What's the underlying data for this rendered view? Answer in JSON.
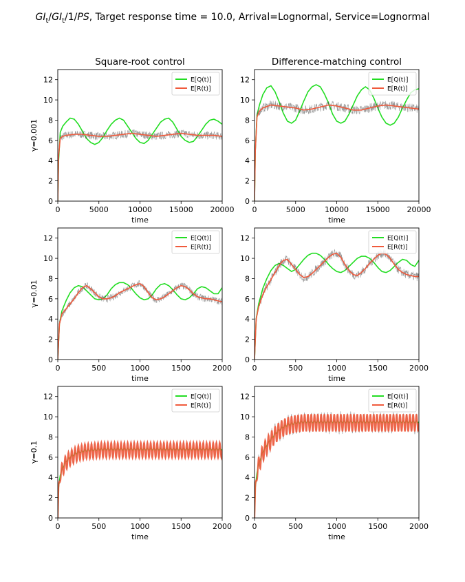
{
  "figure": {
    "title_parts": [
      "GI",
      "t",
      "/",
      "GI",
      "t",
      "/1/",
      "PS",
      ", Target response time = 10.0, Arrival=Lognormal, Service=Lognormal"
    ]
  },
  "colors": {
    "queue": "#22dd22",
    "response": "#f05a3c",
    "band": "#444444"
  },
  "chart_data": [
    {
      "type": "line",
      "title": "Square-root control",
      "xlabel": "time",
      "ylabel": "γ=0.001",
      "xlim": [
        0,
        20000
      ],
      "ylim": [
        0,
        13
      ],
      "xticks": [
        0,
        5000,
        10000,
        15000,
        20000
      ],
      "yticks": [
        0,
        2,
        4,
        6,
        8,
        10,
        12
      ],
      "legend": "top-right",
      "grid": false,
      "series": [
        {
          "name": "E[Q(t)]",
          "x": [
            0,
            100,
            300,
            600,
            1000,
            1500,
            2000,
            2500,
            3000,
            3500,
            4000,
            4500,
            5000,
            5500,
            6000,
            6500,
            7000,
            7500,
            8000,
            8500,
            9000,
            9500,
            10000,
            10500,
            11000,
            11500,
            12000,
            12500,
            13000,
            13500,
            14000,
            14500,
            15000,
            15500,
            16000,
            16500,
            17000,
            17500,
            18000,
            18500,
            19000,
            19500,
            20000
          ],
          "y": [
            0,
            4.0,
            6.8,
            7.4,
            7.8,
            8.2,
            8.1,
            7.6,
            6.9,
            6.2,
            5.8,
            5.6,
            5.8,
            6.3,
            7.0,
            7.6,
            8.0,
            8.2,
            8.0,
            7.4,
            6.8,
            6.2,
            5.8,
            5.7,
            6.0,
            6.6,
            7.2,
            7.8,
            8.1,
            8.2,
            7.8,
            7.1,
            6.4,
            6.0,
            5.8,
            5.9,
            6.4,
            7.0,
            7.6,
            8.0,
            8.1,
            7.9,
            7.6
          ]
        },
        {
          "name": "E[R(t)]",
          "x": [
            0,
            100,
            300,
            600,
            1000,
            2000,
            3000,
            4000,
            5000,
            6000,
            7000,
            8000,
            9000,
            10000,
            11000,
            12000,
            13000,
            14000,
            15000,
            16000,
            17000,
            18000,
            19000,
            20000
          ],
          "y": [
            0,
            4.5,
            6.2,
            6.4,
            6.5,
            6.6,
            6.6,
            6.5,
            6.4,
            6.4,
            6.5,
            6.6,
            6.7,
            6.6,
            6.5,
            6.4,
            6.5,
            6.6,
            6.7,
            6.6,
            6.5,
            6.5,
            6.5,
            6.4
          ],
          "noise": 0.4
        }
      ]
    },
    {
      "type": "line",
      "title": "Difference-matching control",
      "xlabel": "time",
      "ylabel": "",
      "xlim": [
        0,
        20000
      ],
      "ylim": [
        0,
        13
      ],
      "xticks": [
        0,
        5000,
        10000,
        15000,
        20000
      ],
      "yticks": [
        0,
        2,
        4,
        6,
        8,
        10,
        12
      ],
      "legend": "top-right",
      "grid": false,
      "series": [
        {
          "name": "E[Q(t)]",
          "x": [
            0,
            100,
            300,
            600,
            1000,
            1500,
            2000,
            2500,
            3000,
            3500,
            4000,
            4500,
            5000,
            5500,
            6000,
            6500,
            7000,
            7500,
            8000,
            8500,
            9000,
            9500,
            10000,
            10500,
            11000,
            11500,
            12000,
            12500,
            13000,
            13500,
            14000,
            14500,
            15000,
            15500,
            16000,
            16500,
            17000,
            17500,
            18000,
            18500,
            19000,
            19500,
            20000
          ],
          "y": [
            0,
            5.0,
            8.5,
            9.5,
            10.5,
            11.2,
            11.4,
            10.8,
            9.8,
            8.7,
            7.9,
            7.7,
            8.0,
            8.9,
            9.9,
            10.8,
            11.3,
            11.5,
            11.3,
            10.6,
            9.7,
            8.6,
            7.9,
            7.7,
            7.9,
            8.6,
            9.5,
            10.4,
            11.0,
            11.3,
            11.0,
            10.2,
            9.2,
            8.3,
            7.7,
            7.5,
            7.7,
            8.3,
            9.2,
            10.0,
            10.7,
            11.0,
            11.1
          ]
        },
        {
          "name": "E[R(t)]",
          "x": [
            0,
            100,
            300,
            600,
            1000,
            2000,
            3000,
            4000,
            5000,
            6000,
            7000,
            8000,
            9000,
            10000,
            11000,
            12000,
            13000,
            14000,
            15000,
            16000,
            17000,
            18000,
            19000,
            20000
          ],
          "y": [
            0,
            5.0,
            8.3,
            8.9,
            9.2,
            9.5,
            9.4,
            9.3,
            9.2,
            9.0,
            9.1,
            9.3,
            9.5,
            9.4,
            9.2,
            9.0,
            9.0,
            9.2,
            9.4,
            9.5,
            9.4,
            9.3,
            9.2,
            9.1
          ],
          "noise": 0.45
        }
      ]
    },
    {
      "type": "line",
      "title": "",
      "xlabel": "time",
      "ylabel": "γ=0.01",
      "xlim": [
        0,
        2000
      ],
      "ylim": [
        0,
        13
      ],
      "xticks": [
        0,
        500,
        1000,
        1500,
        2000
      ],
      "yticks": [
        0,
        2,
        4,
        6,
        8,
        10,
        12
      ],
      "legend": "top-right",
      "grid": false,
      "series": [
        {
          "name": "E[Q(t)]",
          "x": [
            0,
            20,
            50,
            100,
            150,
            200,
            250,
            300,
            350,
            400,
            450,
            500,
            550,
            600,
            650,
            700,
            750,
            800,
            850,
            900,
            950,
            1000,
            1050,
            1100,
            1150,
            1200,
            1250,
            1300,
            1350,
            1400,
            1450,
            1500,
            1550,
            1600,
            1650,
            1700,
            1750,
            1800,
            1850,
            1900,
            1950,
            2000
          ],
          "y": [
            0,
            3.5,
            4.8,
            5.8,
            6.6,
            7.1,
            7.3,
            7.2,
            6.8,
            6.4,
            6.0,
            5.9,
            6.0,
            6.4,
            7.0,
            7.4,
            7.6,
            7.6,
            7.4,
            7.0,
            6.5,
            6.1,
            5.9,
            6.0,
            6.4,
            7.0,
            7.4,
            7.5,
            7.3,
            6.9,
            6.4,
            6.0,
            5.9,
            6.1,
            6.5,
            7.0,
            7.2,
            7.1,
            6.8,
            6.5,
            6.5,
            7.1
          ]
        },
        {
          "name": "E[R(t)]",
          "x": [
            0,
            20,
            50,
            100,
            150,
            200,
            250,
            300,
            350,
            400,
            450,
            500,
            550,
            600,
            650,
            700,
            750,
            800,
            850,
            900,
            950,
            1000,
            1050,
            1100,
            1150,
            1200,
            1250,
            1300,
            1350,
            1400,
            1450,
            1500,
            1550,
            1600,
            1650,
            1700,
            1750,
            1800,
            1850,
            1900,
            1950,
            2000
          ],
          "y": [
            0,
            3.5,
            4.5,
            5.0,
            5.5,
            6.0,
            6.6,
            7.1,
            7.3,
            7.0,
            6.6,
            6.2,
            6.0,
            6.0,
            6.1,
            6.3,
            6.6,
            6.8,
            7.0,
            7.2,
            7.4,
            7.5,
            7.2,
            6.6,
            6.1,
            5.9,
            6.0,
            6.2,
            6.5,
            6.8,
            7.1,
            7.3,
            7.2,
            6.9,
            6.5,
            6.2,
            6.1,
            6.0,
            6.0,
            5.9,
            5.8,
            5.7
          ],
          "noise": 0.35
        }
      ]
    },
    {
      "type": "line",
      "title": "",
      "xlabel": "time",
      "ylabel": "",
      "xlim": [
        0,
        2000
      ],
      "ylim": [
        0,
        13
      ],
      "xticks": [
        0,
        500,
        1000,
        1500,
        2000
      ],
      "yticks": [
        0,
        2,
        4,
        6,
        8,
        10,
        12
      ],
      "legend": "top-right",
      "grid": false,
      "series": [
        {
          "name": "E[Q(t)]",
          "x": [
            0,
            20,
            50,
            100,
            150,
            200,
            250,
            300,
            350,
            400,
            450,
            500,
            550,
            600,
            650,
            700,
            750,
            800,
            850,
            900,
            950,
            1000,
            1050,
            1100,
            1150,
            1200,
            1250,
            1300,
            1350,
            1400,
            1450,
            1500,
            1550,
            1600,
            1650,
            1700,
            1750,
            1800,
            1850,
            1900,
            1950,
            2000
          ],
          "y": [
            0,
            4.0,
            5.5,
            7.0,
            8.0,
            8.8,
            9.3,
            9.5,
            9.3,
            9.0,
            8.7,
            8.9,
            9.4,
            9.9,
            10.3,
            10.5,
            10.5,
            10.3,
            9.9,
            9.4,
            9.0,
            8.7,
            8.6,
            8.8,
            9.2,
            9.6,
            10.0,
            10.2,
            10.2,
            10.0,
            9.6,
            9.1,
            8.7,
            8.6,
            8.8,
            9.2,
            9.6,
            9.9,
            9.8,
            9.4,
            9.2,
            9.8
          ]
        },
        {
          "name": "E[R(t)]",
          "x": [
            0,
            20,
            50,
            100,
            150,
            200,
            250,
            300,
            350,
            400,
            450,
            500,
            550,
            600,
            650,
            700,
            750,
            800,
            850,
            900,
            950,
            1000,
            1050,
            1100,
            1150,
            1200,
            1250,
            1300,
            1350,
            1400,
            1450,
            1500,
            1550,
            1600,
            1650,
            1700,
            1750,
            1800,
            1850,
            1900,
            1950,
            2000
          ],
          "y": [
            0,
            4.0,
            5.2,
            6.4,
            7.2,
            7.9,
            8.6,
            9.3,
            9.8,
            9.9,
            9.4,
            8.9,
            8.4,
            8.1,
            8.2,
            8.5,
            8.9,
            9.3,
            9.7,
            10.1,
            10.4,
            10.5,
            10.1,
            9.4,
            8.8,
            8.4,
            8.3,
            8.6,
            9.0,
            9.5,
            9.9,
            10.3,
            10.5,
            10.4,
            10.0,
            9.4,
            8.9,
            8.6,
            8.4,
            8.3,
            8.2,
            8.2
          ],
          "noise": 0.45
        }
      ]
    },
    {
      "type": "line",
      "title": "",
      "xlabel": "time",
      "ylabel": "γ=0.1",
      "xlim": [
        0,
        2000
      ],
      "ylim": [
        0,
        13
      ],
      "xticks": [
        0,
        500,
        1000,
        1500,
        2000
      ],
      "yticks": [
        0,
        2,
        4,
        6,
        8,
        10,
        12
      ],
      "legend": "top-right",
      "grid": false,
      "series": [
        {
          "name": "E[Q(t)]",
          "x": [
            0,
            10,
            30,
            60,
            100,
            150,
            200,
            250,
            300,
            350,
            400,
            500,
            600,
            700,
            800,
            900,
            1000,
            1100,
            1200,
            1300,
            1400,
            1500,
            1600,
            1700,
            1800,
            1900,
            2000
          ],
          "y": [
            0,
            3.0,
            4.3,
            5.0,
            5.6,
            6.0,
            6.3,
            6.5,
            6.6,
            6.7,
            6.7,
            6.8,
            6.8,
            6.8,
            6.8,
            6.8,
            6.8,
            6.8,
            6.8,
            6.8,
            6.8,
            6.8,
            6.8,
            6.8,
            6.8,
            6.8,
            6.8
          ],
          "osc": 0.1,
          "period": 40
        },
        {
          "name": "E[R(t)]",
          "x": [
            0,
            10,
            30,
            60,
            100,
            150,
            200,
            250,
            300,
            350,
            400,
            500,
            600,
            700,
            800,
            900,
            1000,
            1100,
            1200,
            1300,
            1400,
            1500,
            1600,
            1700,
            1800,
            1900,
            2000
          ],
          "y": [
            0,
            3.0,
            4.2,
            4.9,
            5.5,
            5.9,
            6.2,
            6.4,
            6.5,
            6.6,
            6.6,
            6.7,
            6.7,
            6.7,
            6.7,
            6.7,
            6.7,
            6.7,
            6.7,
            6.7,
            6.7,
            6.7,
            6.7,
            6.7,
            6.7,
            6.7,
            6.7
          ],
          "osc": 0.75,
          "period": 40
        }
      ]
    },
    {
      "type": "line",
      "title": "",
      "xlabel": "time",
      "ylabel": "",
      "xlim": [
        0,
        2000
      ],
      "ylim": [
        0,
        13
      ],
      "xticks": [
        0,
        500,
        1000,
        1500,
        2000
      ],
      "yticks": [
        0,
        2,
        4,
        6,
        8,
        10,
        12
      ],
      "legend": "top-right",
      "grid": false,
      "series": [
        {
          "name": "E[Q(t)]",
          "x": [
            0,
            10,
            30,
            60,
            100,
            150,
            200,
            250,
            300,
            350,
            400,
            500,
            600,
            700,
            800,
            900,
            1000,
            1100,
            1200,
            1300,
            1400,
            1500,
            1600,
            1700,
            1800,
            1900,
            2000
          ],
          "y": [
            0,
            3.0,
            4.5,
            5.6,
            6.5,
            7.2,
            7.8,
            8.3,
            8.7,
            9.0,
            9.2,
            9.4,
            9.5,
            9.5,
            9.5,
            9.5,
            9.5,
            9.5,
            9.5,
            9.5,
            9.5,
            9.5,
            9.5,
            9.5,
            9.5,
            9.5,
            9.5
          ],
          "osc": 0.1,
          "period": 40
        },
        {
          "name": "E[R(t)]",
          "x": [
            0,
            10,
            30,
            60,
            100,
            150,
            200,
            250,
            300,
            350,
            400,
            500,
            600,
            700,
            800,
            900,
            1000,
            1100,
            1200,
            1300,
            1400,
            1500,
            1600,
            1700,
            1800,
            1900,
            2000
          ],
          "y": [
            0,
            3.0,
            4.4,
            5.5,
            6.4,
            7.1,
            7.7,
            8.2,
            8.6,
            8.9,
            9.1,
            9.3,
            9.4,
            9.4,
            9.4,
            9.4,
            9.4,
            9.4,
            9.4,
            9.4,
            9.4,
            9.4,
            9.4,
            9.4,
            9.4,
            9.4,
            9.4
          ],
          "osc": 0.85,
          "period": 40
        }
      ]
    }
  ]
}
